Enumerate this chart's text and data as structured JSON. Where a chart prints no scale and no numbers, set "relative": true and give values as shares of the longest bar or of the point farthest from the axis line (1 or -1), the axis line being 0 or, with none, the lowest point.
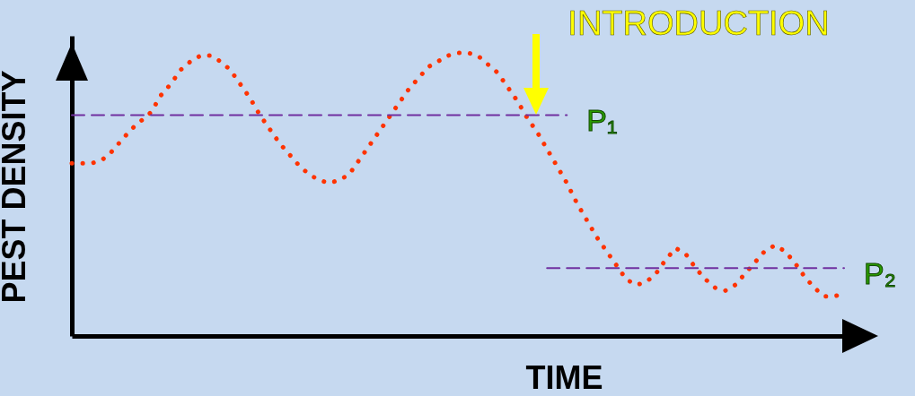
{
  "chart_data": {
    "type": "line",
    "xlabel": "TIME",
    "ylabel": "PEST DENSITY",
    "relative": true,
    "annotations": [
      "INTRODUCTION"
    ],
    "categories": [
      null,
      null,
      null,
      null,
      null,
      null,
      null,
      null,
      null,
      null,
      null,
      null,
      null,
      null,
      null,
      null,
      null,
      null,
      null,
      null,
      null,
      null,
      null,
      null,
      null,
      null,
      null,
      null,
      null,
      null,
      null,
      null,
      null,
      null,
      null,
      null,
      null,
      null,
      null,
      null,
      null,
      null,
      null,
      null,
      null,
      null,
      null,
      null,
      null,
      null,
      null,
      null,
      null,
      null,
      null,
      null,
      null,
      null,
      null,
      null,
      null,
      null,
      null,
      null,
      null,
      null,
      null,
      null,
      null,
      null,
      null,
      null,
      null,
      null,
      null,
      null,
      null,
      null,
      null
    ],
    "series": [
      {
        "color": "#ff3300",
        "line_style": "dotted",
        "values": [
          0.61,
          0.61,
          0.61,
          0.62,
          0.65,
          0.69,
          0.73,
          0.76,
          0.79,
          0.85,
          0.89,
          0.94,
          0.97,
          0.99,
          0.99,
          0.97,
          0.94,
          0.89,
          0.84,
          0.78,
          0.73,
          0.68,
          0.64,
          0.6,
          0.57,
          0.55,
          0.54,
          0.55,
          0.57,
          0.62,
          0.67,
          0.72,
          0.77,
          0.82,
          0.87,
          0.91,
          0.95,
          0.97,
          0.99,
          1.0,
          1.0,
          0.99,
          0.96,
          0.93,
          0.88,
          0.83,
          0.77,
          0.72,
          0.66,
          0.6,
          0.54,
          0.47,
          0.41,
          0.35,
          0.3,
          0.25,
          0.2,
          0.18,
          0.19,
          0.22,
          0.27,
          0.31,
          0.29,
          0.24,
          0.2,
          0.17,
          0.16,
          0.18,
          0.22,
          0.26,
          0.3,
          0.32,
          0.3,
          0.26,
          0.21,
          0.17,
          0.14,
          0.14,
          0.15
        ]
      },
      {
        "name": "P₁",
        "color": "#7030a0",
        "line_style": "dashed",
        "values": [
          0.78,
          0.78,
          0.78,
          0.78,
          0.78,
          0.78,
          0.78,
          0.78,
          0.78,
          0.78,
          0.78,
          0.78,
          0.78,
          0.78,
          0.78,
          0.78,
          0.78,
          0.78,
          0.78,
          0.78,
          0.78,
          0.78,
          0.78,
          0.78,
          0.78,
          0.78,
          0.78,
          0.78,
          0.78,
          0.78,
          0.78,
          0.78,
          0.78,
          0.78,
          0.78,
          0.78,
          0.78,
          0.78,
          0.78,
          0.78,
          0.78,
          0.78,
          0.78,
          0.78,
          0.78,
          0.78,
          0.78,
          0.78,
          0.78,
          0.78,
          0.78,
          null,
          null,
          null,
          null,
          null,
          null,
          null,
          null,
          null,
          null,
          null,
          null,
          null,
          null,
          null,
          null,
          null,
          null,
          null,
          null,
          null,
          null,
          null,
          null,
          null,
          null,
          null,
          null
        ]
      },
      {
        "name": "P₂",
        "color": "#7030a0",
        "line_style": "dashed",
        "values": [
          null,
          null,
          null,
          null,
          null,
          null,
          null,
          null,
          null,
          null,
          null,
          null,
          null,
          null,
          null,
          null,
          null,
          null,
          null,
          null,
          null,
          null,
          null,
          null,
          null,
          null,
          null,
          null,
          null,
          null,
          null,
          null,
          null,
          null,
          null,
          null,
          null,
          null,
          null,
          null,
          null,
          null,
          null,
          null,
          null,
          null,
          null,
          null,
          0.24,
          0.24,
          0.24,
          0.24,
          0.24,
          0.24,
          0.24,
          0.24,
          0.24,
          0.24,
          0.24,
          0.24,
          0.24,
          0.24,
          0.24,
          0.24,
          0.24,
          0.24,
          0.24,
          0.24,
          0.24,
          0.24,
          0.24,
          0.24,
          0.24,
          0.24,
          0.24,
          0.24,
          0.24,
          0.24,
          0.24
        ]
      }
    ]
  }
}
